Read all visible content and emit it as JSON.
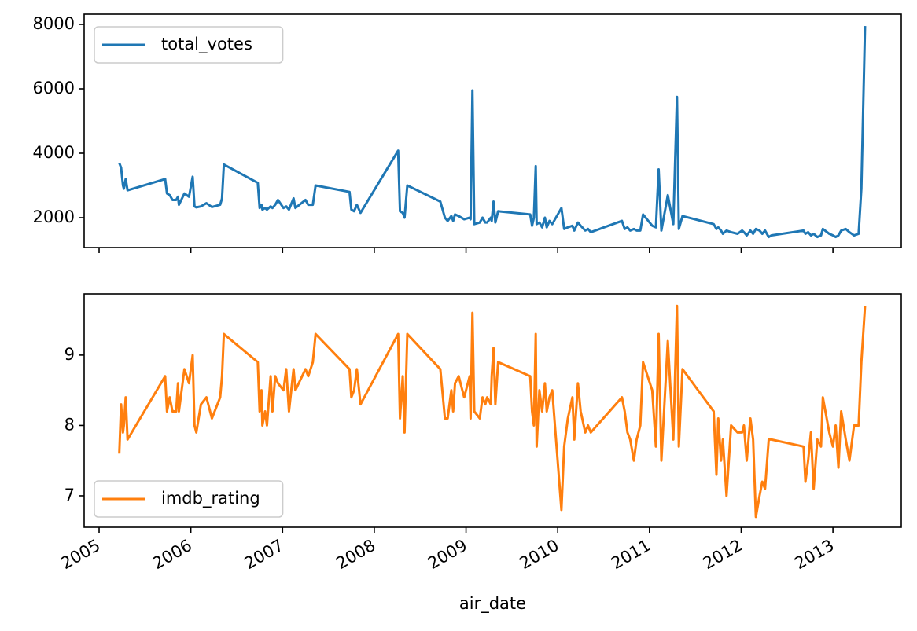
{
  "chart_data": [
    {
      "type": "line",
      "x": [
        2005.22,
        2005.24,
        2005.26,
        2005.27,
        2005.29,
        2005.31,
        2005.72,
        2005.74,
        2005.77,
        2005.8,
        2005.84,
        2005.86,
        2005.87,
        2005.93,
        2005.98,
        2006.02,
        2006.04,
        2006.06,
        2006.11,
        2006.17,
        2006.23,
        2006.32,
        2006.34,
        2006.36,
        2006.73,
        2006.75,
        2006.77,
        2006.78,
        2006.81,
        2006.83,
        2006.87,
        2006.89,
        2006.92,
        2006.95,
        2007.01,
        2007.04,
        2007.07,
        2007.12,
        2007.14,
        2007.25,
        2007.28,
        2007.33,
        2007.36,
        2007.73,
        2007.75,
        2007.78,
        2007.81,
        2007.85,
        2008.26,
        2008.28,
        2008.31,
        2008.33,
        2008.36,
        2008.72,
        2008.77,
        2008.8,
        2008.84,
        2008.86,
        2008.88,
        2008.92,
        2008.98,
        2009.04,
        2009.05,
        2009.07,
        2009.09,
        2009.15,
        2009.18,
        2009.21,
        2009.23,
        2009.27,
        2009.28,
        2009.3,
        2009.32,
        2009.35,
        2009.7,
        2009.72,
        2009.74,
        2009.76,
        2009.77,
        2009.8,
        2009.83,
        2009.86,
        2009.88,
        2009.91,
        2009.94,
        2010.04,
        2010.07,
        2010.11,
        2010.16,
        2010.18,
        2010.22,
        2010.25,
        2010.3,
        2010.33,
        2010.36,
        2010.7,
        2010.73,
        2010.76,
        2010.79,
        2010.83,
        2010.86,
        2010.9,
        2010.93,
        2011.03,
        2011.07,
        2011.1,
        2011.13,
        2011.2,
        2011.26,
        2011.3,
        2011.32,
        2011.36,
        2011.7,
        2011.73,
        2011.75,
        2011.78,
        2011.8,
        2011.84,
        2011.89,
        2011.96,
        2012.01,
        2012.03,
        2012.06,
        2012.1,
        2012.13,
        2012.16,
        2012.2,
        2012.23,
        2012.26,
        2012.3,
        2012.33,
        2012.68,
        2012.7,
        2012.73,
        2012.76,
        2012.79,
        2012.83,
        2012.87,
        2012.89,
        2012.96,
        2013.0,
        2013.03,
        2013.06,
        2013.09,
        2013.14,
        2013.18,
        2013.23,
        2013.28,
        2013.31,
        2013.35
      ],
      "series": [
        {
          "name": "total_votes",
          "color": "#1f77b4",
          "values": [
            3700,
            3550,
            3000,
            2900,
            3200,
            2850,
            3200,
            2750,
            2700,
            2550,
            2550,
            2650,
            2400,
            2750,
            2650,
            3270,
            2350,
            2320,
            2350,
            2450,
            2330,
            2400,
            2600,
            3650,
            3080,
            2300,
            2400,
            2250,
            2300,
            2250,
            2350,
            2300,
            2400,
            2550,
            2300,
            2350,
            2250,
            2600,
            2300,
            2550,
            2400,
            2400,
            3000,
            2800,
            2250,
            2200,
            2400,
            2150,
            4080,
            2200,
            2150,
            2000,
            3000,
            2500,
            2000,
            1900,
            2050,
            1900,
            2100,
            2050,
            1950,
            2000,
            1950,
            5950,
            1800,
            1850,
            2000,
            1850,
            1850,
            2000,
            1900,
            2500,
            1850,
            2200,
            2100,
            1750,
            2000,
            3600,
            1800,
            1850,
            1700,
            2000,
            1700,
            1900,
            1800,
            2300,
            1650,
            1700,
            1750,
            1600,
            1850,
            1750,
            1600,
            1650,
            1550,
            1900,
            1650,
            1700,
            1600,
            1650,
            1600,
            1600,
            2100,
            1750,
            1700,
            3500,
            1600,
            2700,
            1800,
            5750,
            1650,
            2050,
            1800,
            1650,
            1700,
            1600,
            1500,
            1600,
            1550,
            1500,
            1600,
            1550,
            1450,
            1600,
            1500,
            1650,
            1600,
            1500,
            1600,
            1400,
            1450,
            1600,
            1500,
            1550,
            1450,
            1500,
            1400,
            1450,
            1650,
            1500,
            1450,
            1400,
            1450,
            1600,
            1650,
            1550,
            1450,
            1500,
            2900,
            7950
          ]
        }
      ],
      "xlim": [
        2004.837,
        2013.745
      ],
      "xticks": [
        2005,
        2006,
        2007,
        2008,
        2009,
        2010,
        2011,
        2012,
        2013
      ],
      "show_xtick_labels": false,
      "ylim": [
        1073,
        8317
      ],
      "yticks": [
        2000,
        4000,
        6000,
        8000
      ],
      "legend": "upper left"
    },
    {
      "type": "line",
      "x": [
        2005.22,
        2005.24,
        2005.26,
        2005.27,
        2005.29,
        2005.31,
        2005.72,
        2005.74,
        2005.77,
        2005.8,
        2005.84,
        2005.86,
        2005.87,
        2005.93,
        2005.98,
        2006.02,
        2006.04,
        2006.06,
        2006.11,
        2006.17,
        2006.23,
        2006.32,
        2006.34,
        2006.36,
        2006.73,
        2006.75,
        2006.77,
        2006.78,
        2006.81,
        2006.83,
        2006.87,
        2006.89,
        2006.92,
        2006.95,
        2007.01,
        2007.04,
        2007.07,
        2007.12,
        2007.14,
        2007.25,
        2007.28,
        2007.33,
        2007.36,
        2007.73,
        2007.75,
        2007.78,
        2007.81,
        2007.85,
        2008.26,
        2008.28,
        2008.31,
        2008.33,
        2008.36,
        2008.72,
        2008.77,
        2008.8,
        2008.84,
        2008.86,
        2008.88,
        2008.92,
        2008.98,
        2009.04,
        2009.05,
        2009.07,
        2009.09,
        2009.15,
        2009.18,
        2009.21,
        2009.23,
        2009.27,
        2009.28,
        2009.3,
        2009.32,
        2009.35,
        2009.7,
        2009.72,
        2009.74,
        2009.76,
        2009.77,
        2009.8,
        2009.83,
        2009.86,
        2009.88,
        2009.91,
        2009.94,
        2010.04,
        2010.07,
        2010.11,
        2010.16,
        2010.18,
        2010.22,
        2010.25,
        2010.3,
        2010.33,
        2010.36,
        2010.7,
        2010.73,
        2010.76,
        2010.79,
        2010.83,
        2010.86,
        2010.9,
        2010.93,
        2011.03,
        2011.07,
        2011.1,
        2011.13,
        2011.2,
        2011.26,
        2011.3,
        2011.32,
        2011.36,
        2011.7,
        2011.73,
        2011.75,
        2011.78,
        2011.8,
        2011.84,
        2011.89,
        2011.96,
        2012.01,
        2012.03,
        2012.06,
        2012.1,
        2012.13,
        2012.16,
        2012.2,
        2012.23,
        2012.26,
        2012.3,
        2012.33,
        2012.68,
        2012.7,
        2012.73,
        2012.76,
        2012.79,
        2012.83,
        2012.87,
        2012.89,
        2012.96,
        2013.0,
        2013.03,
        2013.06,
        2013.09,
        2013.14,
        2013.18,
        2013.23,
        2013.28,
        2013.31,
        2013.35
      ],
      "series": [
        {
          "name": "imdb_rating",
          "color": "#ff7f0e",
          "values": [
            7.6,
            8.3,
            7.9,
            8.0,
            8.4,
            7.8,
            8.7,
            8.2,
            8.4,
            8.2,
            8.2,
            8.6,
            8.2,
            8.8,
            8.6,
            9.0,
            8.0,
            7.9,
            8.3,
            8.4,
            8.1,
            8.4,
            8.7,
            9.3,
            8.9,
            8.2,
            8.5,
            8.0,
            8.2,
            8.0,
            8.7,
            8.2,
            8.7,
            8.6,
            8.5,
            8.8,
            8.2,
            8.8,
            8.5,
            8.8,
            8.7,
            8.9,
            9.3,
            8.8,
            8.4,
            8.5,
            8.8,
            8.3,
            9.3,
            8.1,
            8.7,
            7.9,
            9.3,
            8.8,
            8.1,
            8.1,
            8.5,
            8.2,
            8.6,
            8.7,
            8.4,
            8.7,
            8.1,
            9.6,
            8.2,
            8.1,
            8.4,
            8.3,
            8.4,
            8.3,
            8.7,
            9.1,
            8.3,
            8.9,
            8.7,
            8.2,
            8.0,
            9.3,
            7.7,
            8.5,
            8.2,
            8.6,
            8.2,
            8.4,
            8.5,
            6.8,
            7.7,
            8.1,
            8.4,
            7.8,
            8.6,
            8.2,
            7.9,
            8.0,
            7.9,
            8.4,
            8.2,
            7.9,
            7.8,
            7.5,
            7.8,
            8.0,
            8.9,
            8.5,
            7.7,
            9.3,
            7.5,
            9.2,
            7.8,
            9.7,
            7.7,
            8.8,
            8.2,
            7.3,
            8.1,
            7.5,
            7.8,
            7.0,
            8.0,
            7.9,
            7.9,
            8.0,
            7.5,
            8.1,
            7.8,
            6.7,
            7.0,
            7.2,
            7.1,
            7.8,
            7.8,
            7.7,
            7.2,
            7.5,
            7.9,
            7.1,
            7.8,
            7.7,
            8.4,
            7.9,
            7.7,
            8.0,
            7.4,
            8.2,
            7.8,
            7.5,
            8.0,
            8.0,
            8.9,
            9.7
          ]
        }
      ],
      "xlim": [
        2004.837,
        2013.745
      ],
      "xticks": [
        2005,
        2006,
        2007,
        2008,
        2009,
        2010,
        2011,
        2012,
        2013
      ],
      "show_xtick_labels": true,
      "xlabel": "air_date",
      "ylim": [
        6.553,
        9.87
      ],
      "yticks": [
        7,
        8,
        9
      ],
      "legend": "lower left"
    }
  ]
}
